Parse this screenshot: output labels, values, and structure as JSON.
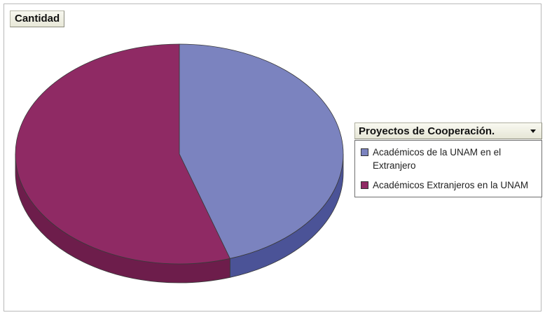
{
  "data_field_label": "Cantidad",
  "legend": {
    "title": "Proyectos de Cooperación."
  },
  "chart_data": {
    "type": "pie",
    "title": "",
    "categories": [
      "Académicos de la UNAM en el Extranjero",
      "Académicos Extranjeros en la UNAM"
    ],
    "values": [
      45,
      55
    ],
    "legend_position": "right",
    "style": "3d",
    "colors": [
      "#7b83bf",
      "#8f2a64"
    ],
    "side_colors": [
      "#4b5397",
      "#6d1d4b"
    ]
  }
}
